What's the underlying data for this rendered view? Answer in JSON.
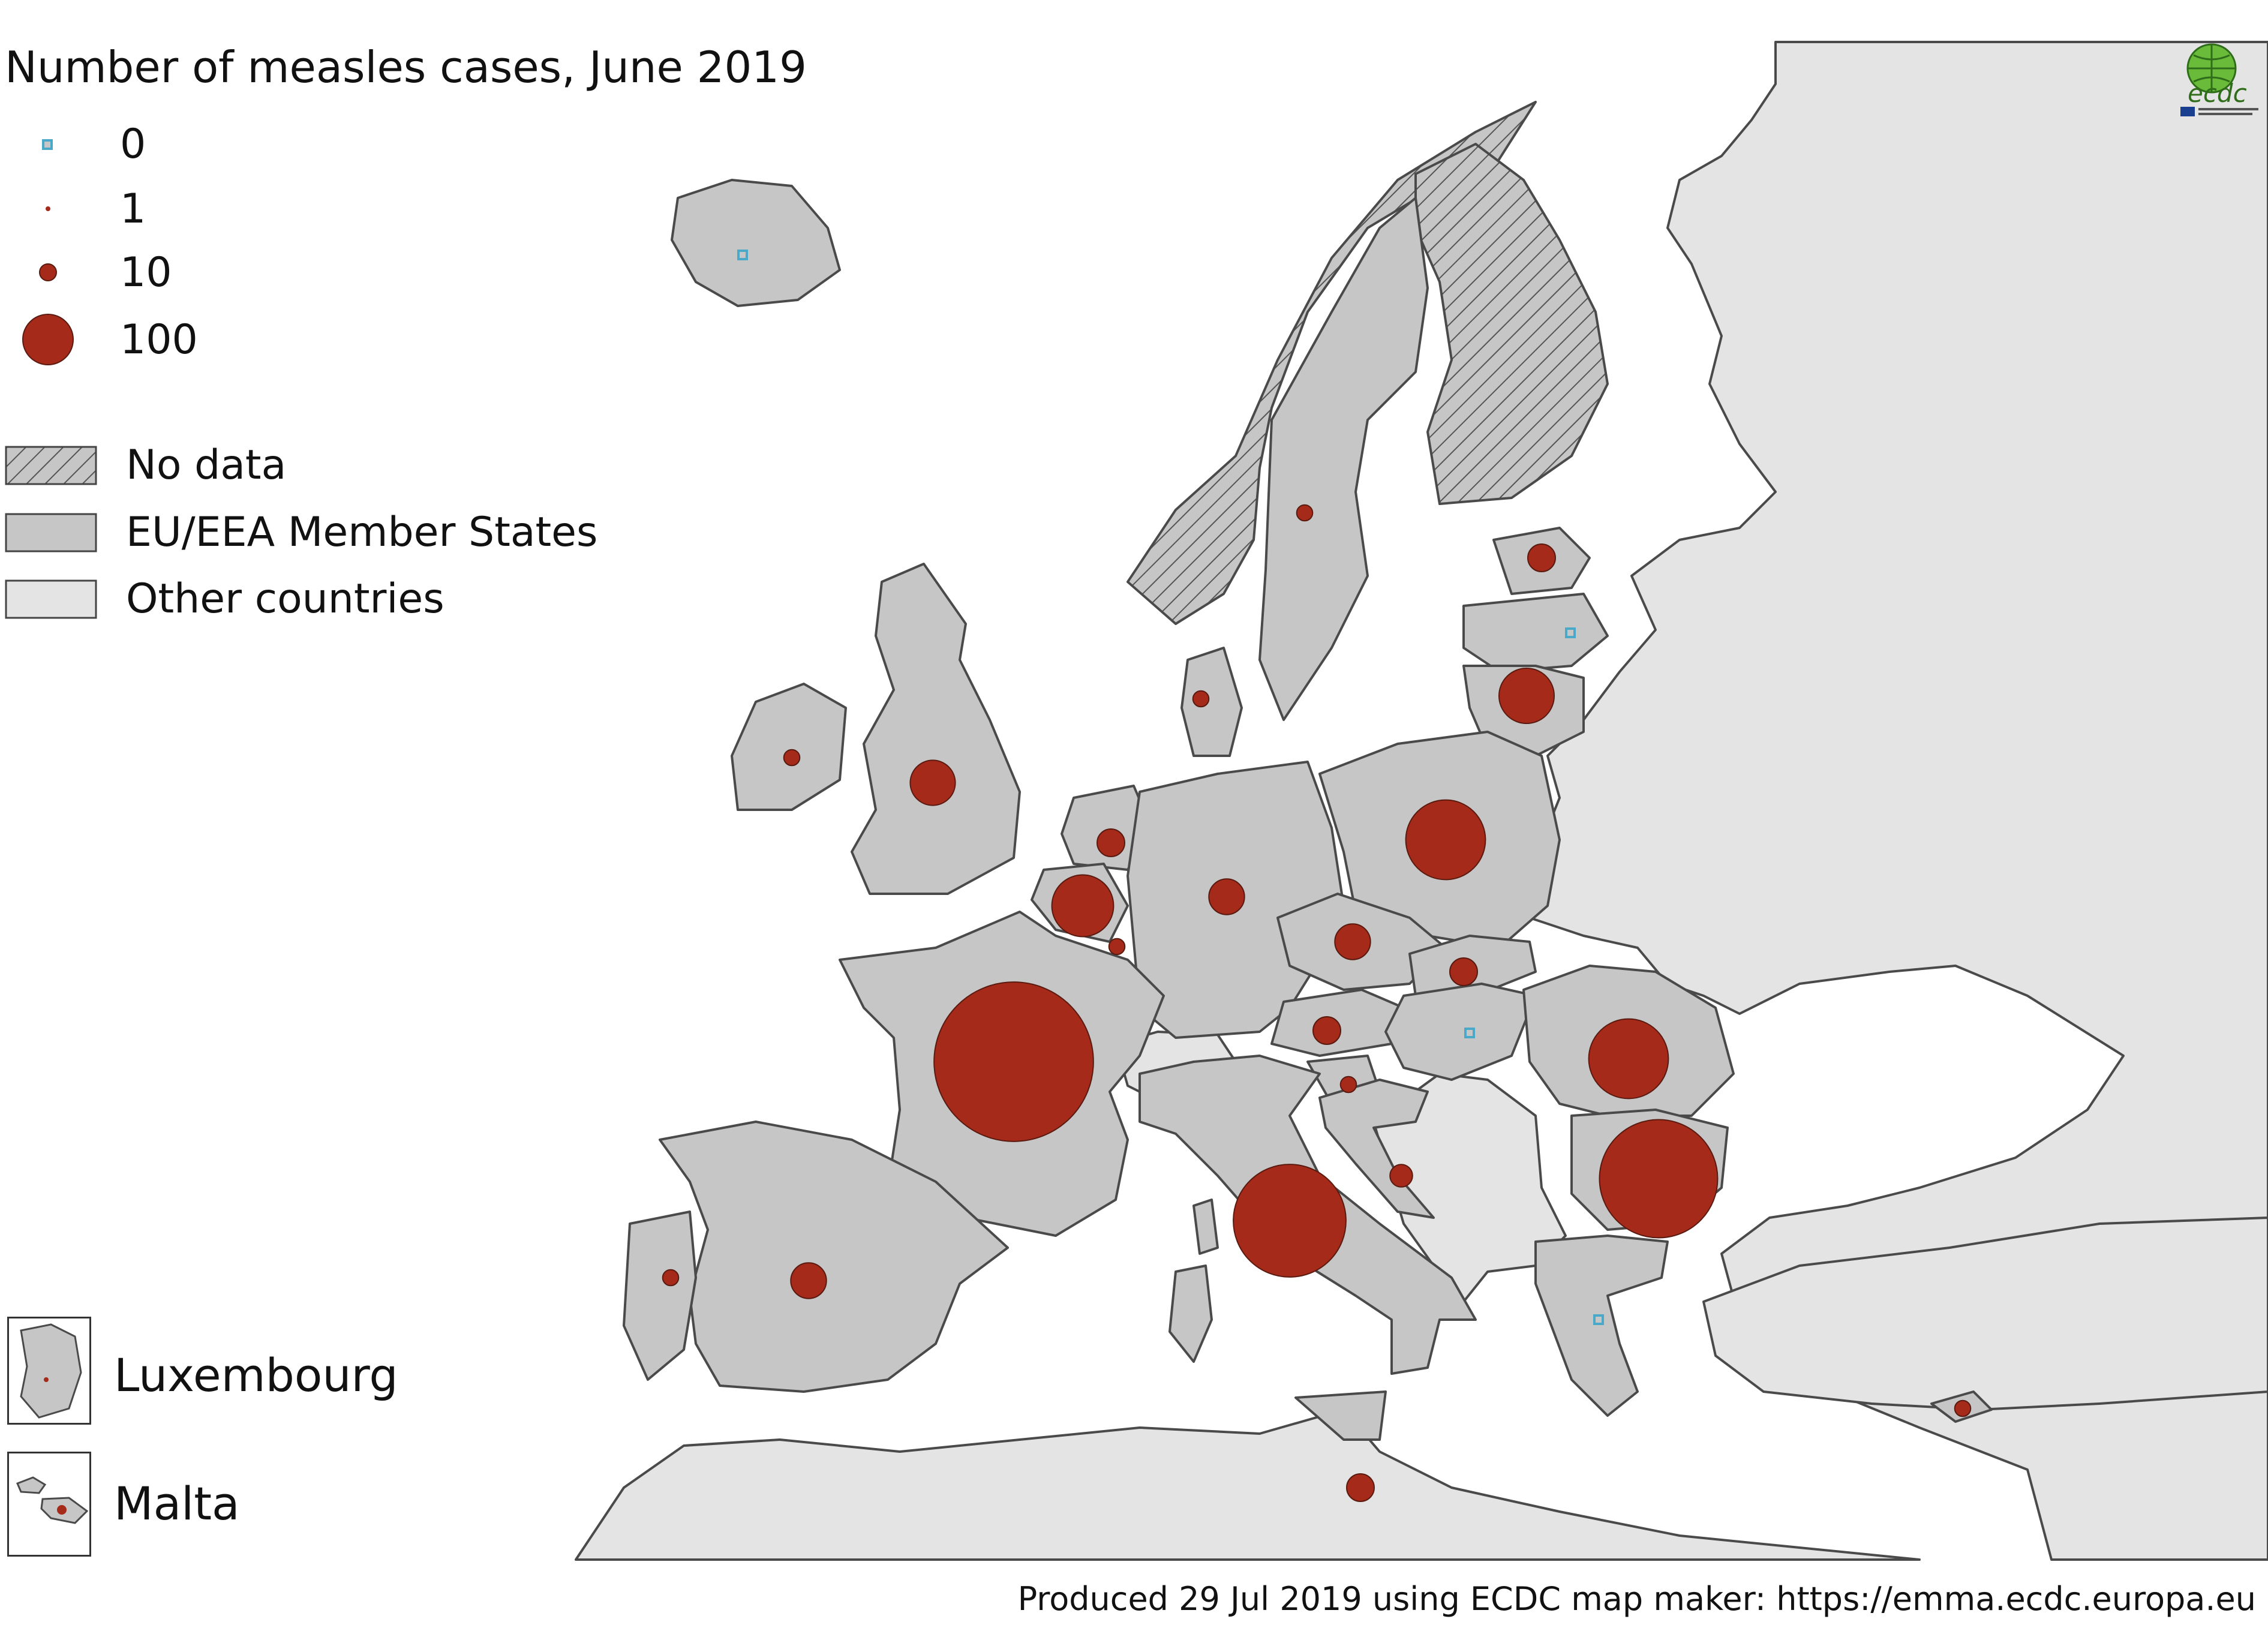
{
  "title": "Number of measles cases, June 2019",
  "legend": {
    "cases": [
      {
        "label": "0",
        "value": 0
      },
      {
        "label": "1",
        "value": 1
      },
      {
        "label": "10",
        "value": 10
      },
      {
        "label": "100",
        "value": 100
      }
    ],
    "categories": [
      {
        "label": "No data",
        "fill": "hatched"
      },
      {
        "label": "EU/EEA Member States",
        "fill": "#c6c6c6"
      },
      {
        "label": "Other countries",
        "fill": "#e4e4e4"
      }
    ]
  },
  "insets": [
    {
      "label": "Luxembourg"
    },
    {
      "label": "Malta"
    }
  ],
  "footer": "Produced 29 Jul 2019 using ECDC map maker: https://emma.ecdc.europa.eu",
  "logo": {
    "text": "ecdc",
    "icon": "ecdc-logo-icon"
  },
  "colors": {
    "sea": "#ffffff",
    "eu_eea": "#c6c6c6",
    "other": "#e4e4e4",
    "bubble": "#a52a1a",
    "zero_marker": "#4aa8c8",
    "border": "#4a4a4a"
  },
  "countries": [
    {
      "name": "France",
      "cases": 100
    },
    {
      "name": "Italy",
      "cases": 50
    },
    {
      "name": "Bulgaria",
      "cases": 55
    },
    {
      "name": "Romania",
      "cases": 25
    },
    {
      "name": "Poland",
      "cases": 25
    },
    {
      "name": "Belgium",
      "cases": 15
    },
    {
      "name": "Lithuania",
      "cases": 12
    },
    {
      "name": "United Kingdom",
      "cases": 8
    },
    {
      "name": "Germany",
      "cases": 5
    },
    {
      "name": "Czechia",
      "cases": 5
    },
    {
      "name": "Spain",
      "cases": 5
    },
    {
      "name": "Slovakia",
      "cases": 3
    },
    {
      "name": "Latvia",
      "cases": 3
    },
    {
      "name": "Austria",
      "cases": 3
    },
    {
      "name": "Netherlands",
      "cases": 3
    },
    {
      "name": "Croatia",
      "cases": 2
    },
    {
      "name": "Slovenia",
      "cases": 1
    },
    {
      "name": "Ireland",
      "cases": 1
    },
    {
      "name": "Sweden",
      "cases": 1
    },
    {
      "name": "Denmark",
      "cases": 1
    },
    {
      "name": "Portugal",
      "cases": 1
    },
    {
      "name": "Cyprus",
      "cases": 1
    },
    {
      "name": "Luxembourg",
      "cases": 1
    },
    {
      "name": "Malta",
      "cases": 3
    },
    {
      "name": "Iceland",
      "cases": 0
    },
    {
      "name": "Estonia",
      "cases": 0
    },
    {
      "name": "Hungary",
      "cases": 0
    },
    {
      "name": "Greece",
      "cases": 0
    }
  ]
}
